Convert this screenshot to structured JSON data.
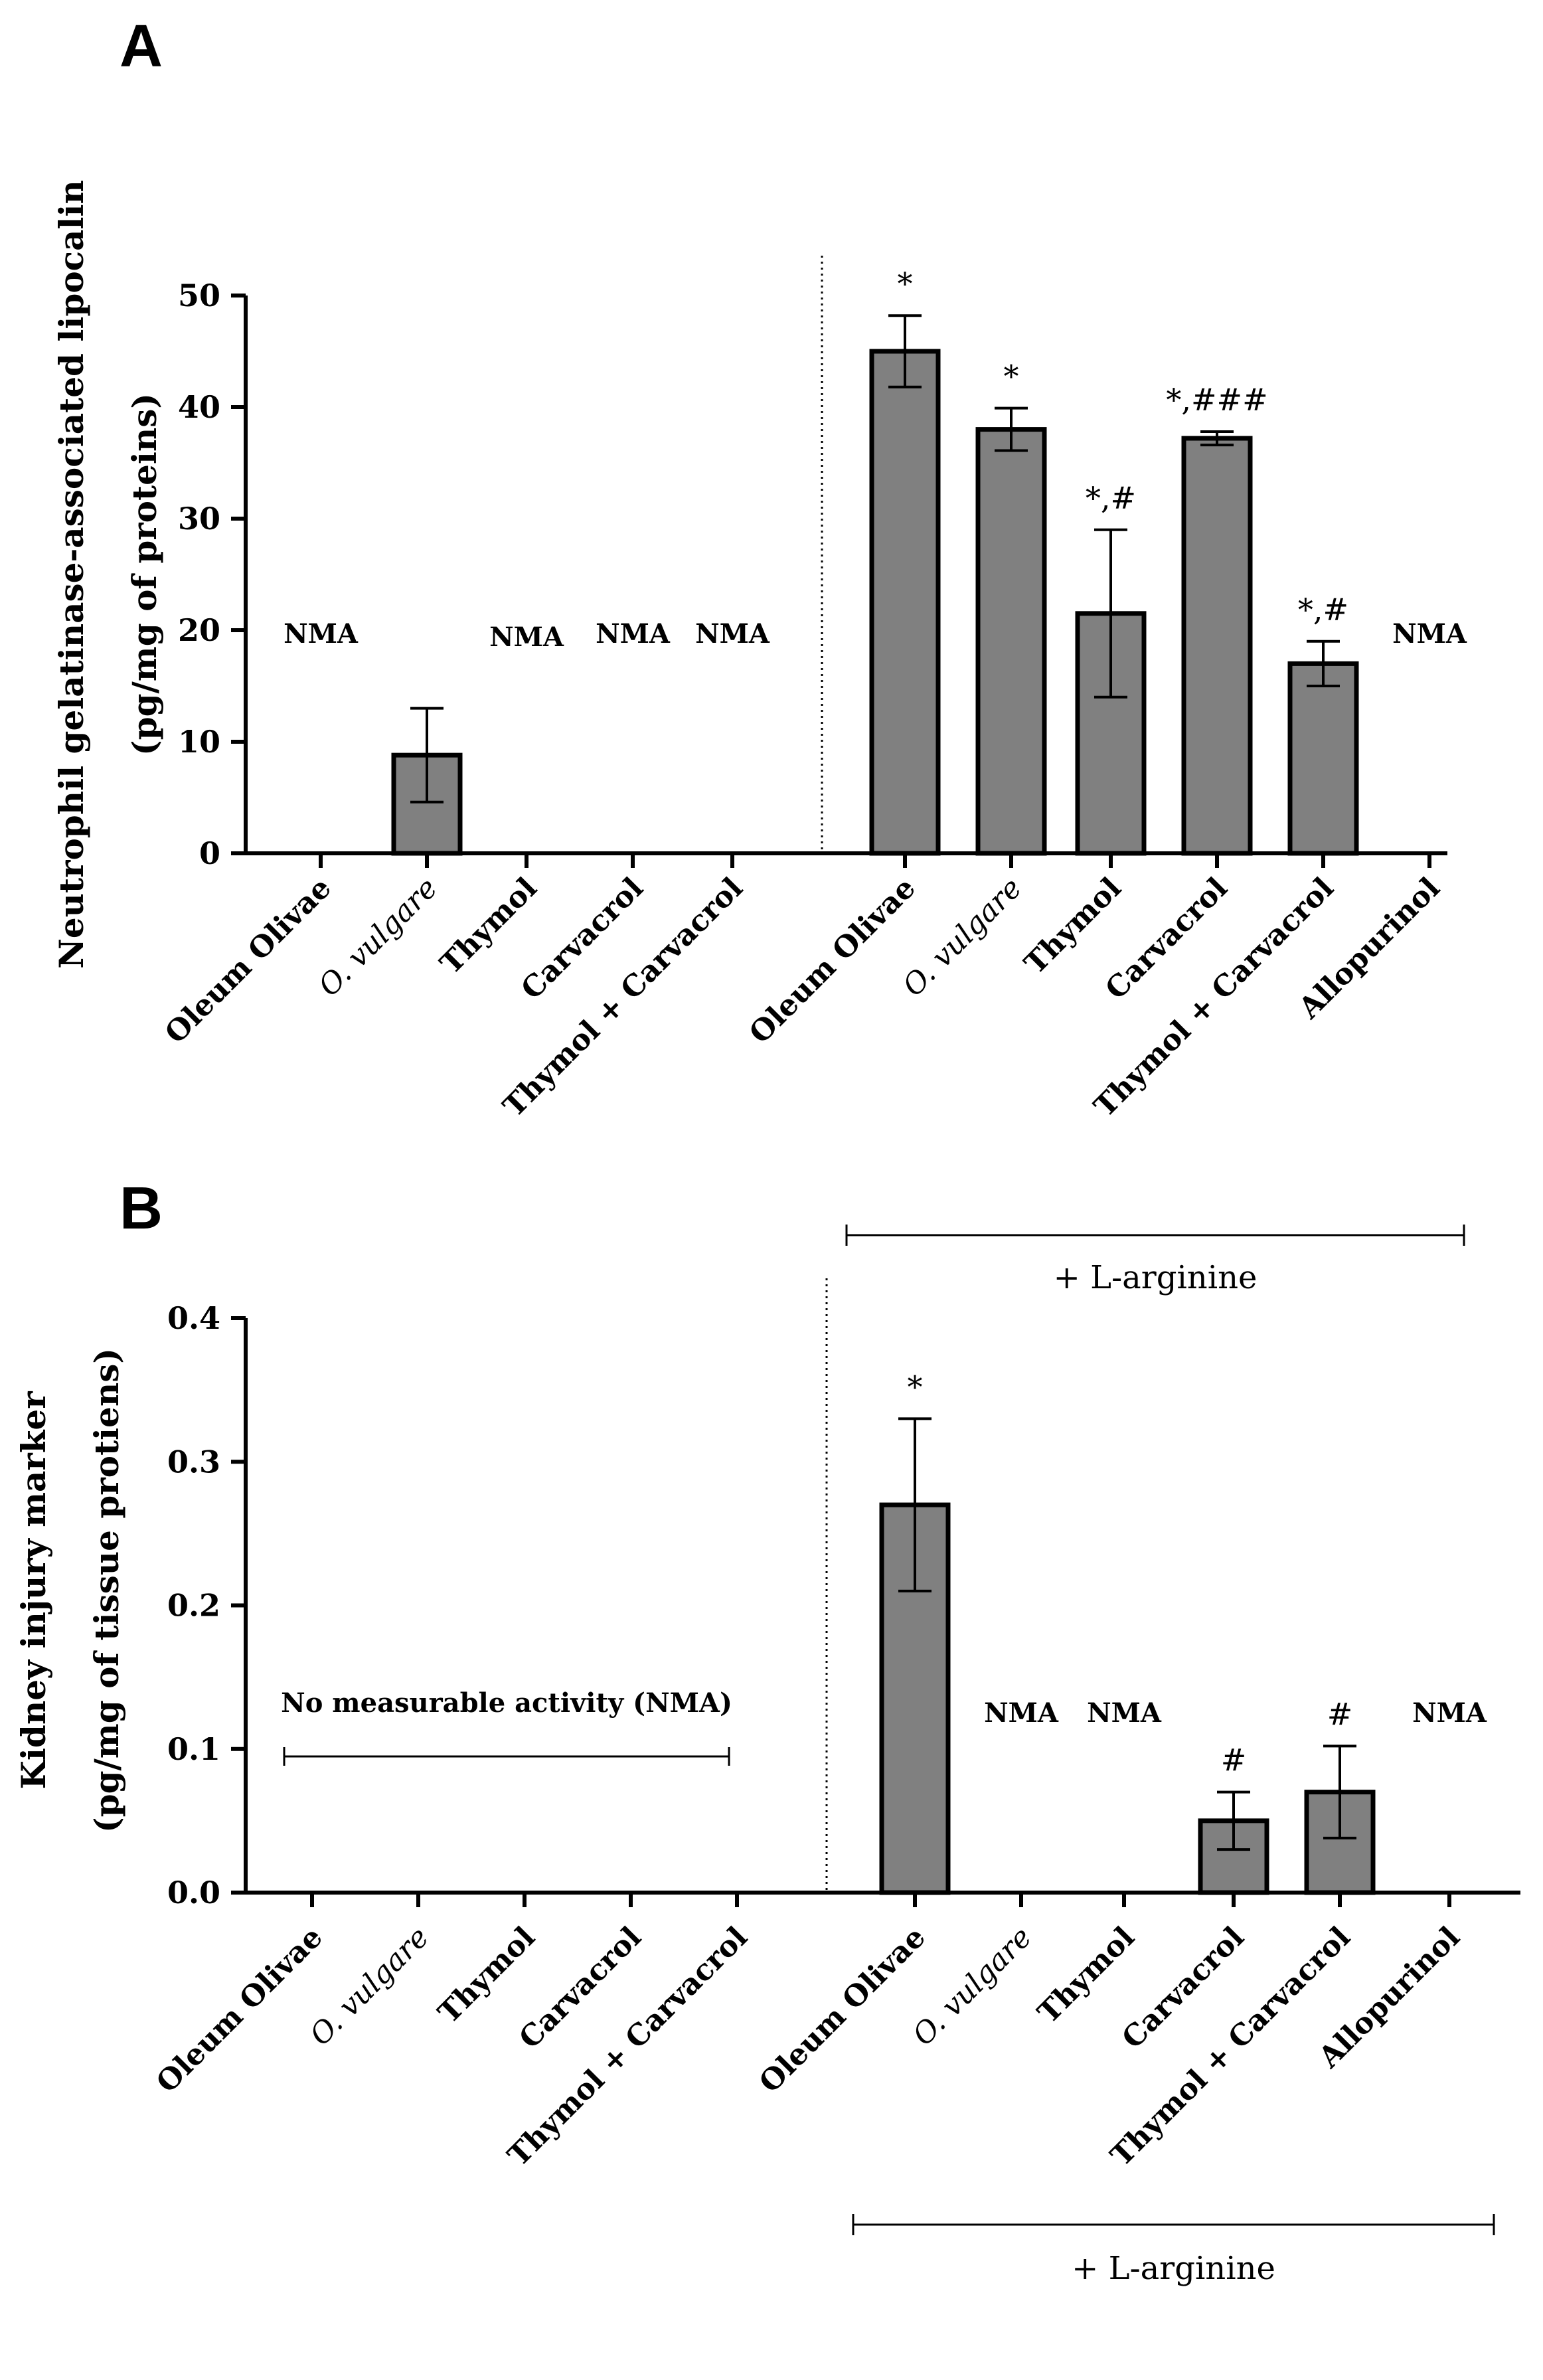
{
  "chart_data": [
    {
      "panel": "A",
      "type": "bar",
      "ylabel_line1": "Neutrophil gelatinase-associated lipocalin",
      "ylabel_line2": "(pg/mg of proteins)",
      "ylim": [
        0,
        50
      ],
      "yticks": [
        "0",
        "10",
        "20",
        "30",
        "40",
        "50"
      ],
      "categories": [
        "Oleum Olivae",
        "O. vulgare",
        "Thymol",
        "Carvacrol",
        "Thymol + Carvacrol",
        "Oleum Olivae",
        "O. vulgare",
        "Thymol",
        "Carvacrol",
        "Thymol + Carvacrol",
        "Allopurinol"
      ],
      "values": [
        null,
        8.8,
        null,
        null,
        null,
        45,
        38,
        21.5,
        37.2,
        17,
        null
      ],
      "errors": [
        null,
        4.2,
        null,
        null,
        null,
        3.2,
        1.9,
        7.5,
        0.6,
        2.0,
        null
      ],
      "significance": [
        "",
        "",
        "",
        "",
        "",
        "*",
        "*",
        "*,#",
        "*,###",
        "*,#",
        ""
      ],
      "nma_labels": [
        "NMA",
        "",
        "NMA",
        "NMA",
        "NMA",
        "",
        "",
        "",
        "",
        "",
        "NMA"
      ],
      "bracket_label": "+ L-arginine"
    },
    {
      "panel": "B",
      "type": "bar",
      "ylabel_line1": "Kidney injury marker",
      "ylabel_line2": "(pg/mg of tissue protiens)",
      "ylim": [
        0,
        0.4
      ],
      "yticks": [
        "0.0",
        "0.1",
        "0.2",
        "0.3",
        "0.4"
      ],
      "categories": [
        "Oleum Olivae",
        "O. vulgare",
        "Thymol",
        "Carvacrol",
        "Thymol + Carvacrol",
        "Oleum Olivae",
        "O. vulgare",
        "Thymol",
        "Carvacrol",
        "Thymol + Carvacrol",
        "Allopurinol"
      ],
      "values": [
        null,
        null,
        null,
        null,
        null,
        0.27,
        null,
        null,
        0.05,
        0.07,
        null
      ],
      "errors": [
        null,
        null,
        null,
        null,
        null,
        0.06,
        null,
        null,
        0.02,
        0.032,
        null
      ],
      "significance": [
        "",
        "",
        "",
        "",
        "",
        "*",
        "",
        "",
        "#",
        "#",
        ""
      ],
      "nma_labels": [
        "",
        "",
        "",
        "",
        "",
        "",
        "NMA",
        "NMA",
        "",
        "",
        "NMA"
      ],
      "group_annotation": "No measurable activity (NMA)",
      "bracket_label": "+ L-arginine"
    }
  ],
  "colors": {
    "bar": "#808080",
    "stroke": "#000000"
  }
}
